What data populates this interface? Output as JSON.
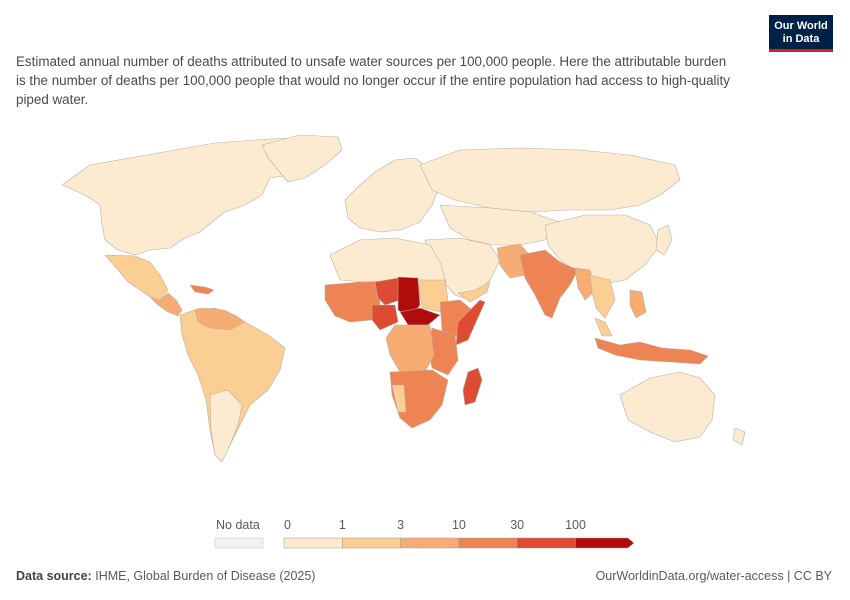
{
  "logo": {
    "line1": "Our World",
    "line2": "in Data"
  },
  "subtitle": "Estimated annual number of deaths attributed to unsafe water sources per 100,000 people. Here the attributable burden is the number of deaths per 100,000 people that would no longer occur if the entire population had access to high-quality piped water.",
  "legend": {
    "no_data_label": "No data",
    "ticks": [
      "0",
      "1",
      "3",
      "10",
      "30",
      "100"
    ],
    "bins": [
      {
        "range": "0-1",
        "color": "#fdebd1"
      },
      {
        "range": "1-3",
        "color": "#fbcf93"
      },
      {
        "range": "3-10",
        "color": "#f6ac72"
      },
      {
        "range": "10-30",
        "color": "#ee8454"
      },
      {
        "range": "30-100",
        "color": "#dd4b33"
      },
      {
        "range": ">100",
        "color": "#b10d0d"
      }
    ]
  },
  "colors": {
    "ocean": "#ffffff",
    "border": "#b9b0a4",
    "bin0": "#fdebd1",
    "bin1": "#fbcf93",
    "bin2": "#f6ac72",
    "bin3": "#ee8454",
    "bin4": "#dd4b33",
    "bin5": "#b10d0d"
  },
  "footer": {
    "source_label": "Data source:",
    "source_text": "IHME, Global Burden of Disease (2025)",
    "url": "OurWorldinData.org/water-access | CC BY"
  }
}
